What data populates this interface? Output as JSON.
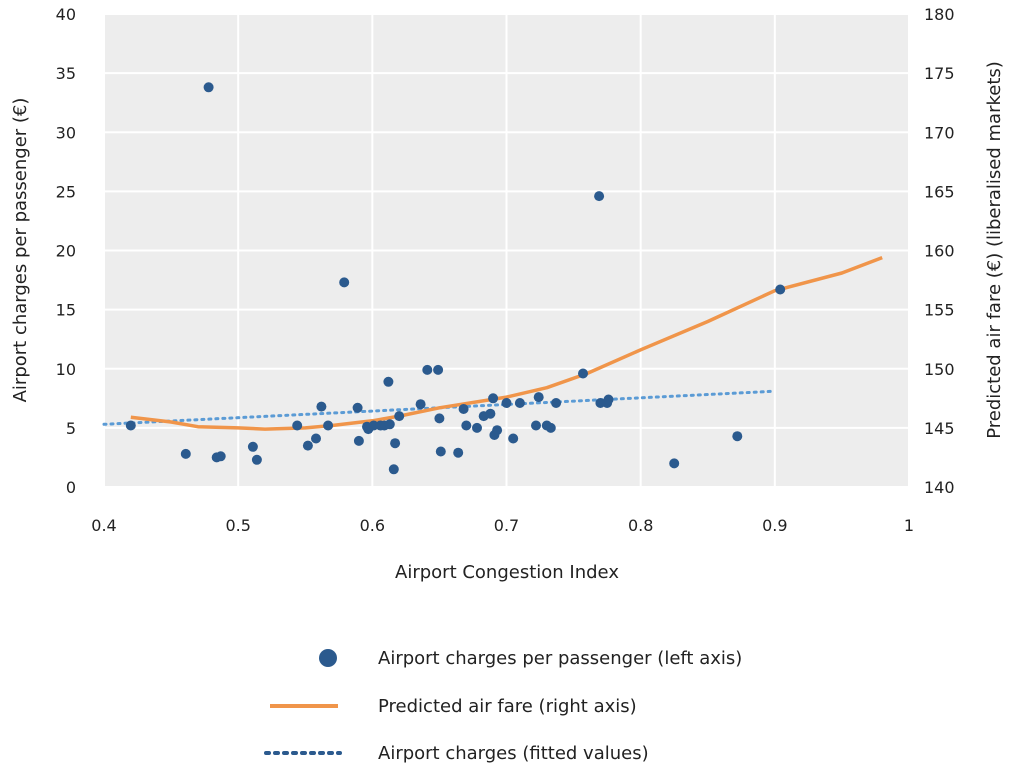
{
  "chart_data": {
    "type": "scatter",
    "x_axis": {
      "label": "Airport Congestion Index",
      "range": [
        0.4,
        1.0
      ],
      "ticks": [
        0.4,
        0.5,
        0.6,
        0.7,
        0.8,
        0.9,
        1.0
      ],
      "tick_labels": [
        "0.4",
        "0.5",
        "0.6",
        "0.7",
        "0.8",
        "0.9",
        "1"
      ]
    },
    "y_axis_left": {
      "label": "Airport charges per passenger (€)",
      "range": [
        0,
        40
      ],
      "ticks": [
        0,
        5,
        10,
        15,
        20,
        25,
        30,
        35,
        40
      ],
      "tick_labels": [
        "0",
        "5",
        "10",
        "15",
        "20",
        "25",
        "30",
        "35",
        "40"
      ]
    },
    "y_axis_right": {
      "label": "Predicted air fare (€) (liberalised markets)",
      "range": [
        140,
        180
      ],
      "ticks": [
        140,
        145,
        150,
        155,
        160,
        165,
        170,
        175,
        180
      ],
      "tick_labels": [
        "140",
        "145",
        "150",
        "155",
        "160",
        "165",
        "170",
        "175",
        "180"
      ]
    },
    "grid": true,
    "legend_position": "bottom",
    "series": [
      {
        "name": "Airport charges per passenger (left axis)",
        "type": "scatter",
        "axis": "left",
        "color": "#2b5a8e",
        "points": [
          [
            0.42,
            5.2
          ],
          [
            0.461,
            2.8
          ],
          [
            0.478,
            33.8
          ],
          [
            0.484,
            2.5
          ],
          [
            0.487,
            2.6
          ],
          [
            0.511,
            3.4
          ],
          [
            0.514,
            2.3
          ],
          [
            0.544,
            5.2
          ],
          [
            0.552,
            3.5
          ],
          [
            0.558,
            4.1
          ],
          [
            0.562,
            6.8
          ],
          [
            0.567,
            5.2
          ],
          [
            0.579,
            17.3
          ],
          [
            0.589,
            6.7
          ],
          [
            0.59,
            3.9
          ],
          [
            0.596,
            5.1
          ],
          [
            0.597,
            4.9
          ],
          [
            0.601,
            5.2
          ],
          [
            0.606,
            5.2
          ],
          [
            0.609,
            5.2
          ],
          [
            0.612,
            8.9
          ],
          [
            0.613,
            5.3
          ],
          [
            0.616,
            1.5
          ],
          [
            0.617,
            3.7
          ],
          [
            0.62,
            6.0
          ],
          [
            0.636,
            7.0
          ],
          [
            0.641,
            9.9
          ],
          [
            0.649,
            9.9
          ],
          [
            0.65,
            5.8
          ],
          [
            0.651,
            3.0
          ],
          [
            0.664,
            2.9
          ],
          [
            0.668,
            6.6
          ],
          [
            0.67,
            5.2
          ],
          [
            0.678,
            5.0
          ],
          [
            0.683,
            6.0
          ],
          [
            0.688,
            6.2
          ],
          [
            0.69,
            7.5
          ],
          [
            0.691,
            4.4
          ],
          [
            0.693,
            4.8
          ],
          [
            0.7,
            7.1
          ],
          [
            0.705,
            4.1
          ],
          [
            0.71,
            7.1
          ],
          [
            0.722,
            5.2
          ],
          [
            0.724,
            7.6
          ],
          [
            0.73,
            5.2
          ],
          [
            0.733,
            5.0
          ],
          [
            0.737,
            7.1
          ],
          [
            0.757,
            9.6
          ],
          [
            0.769,
            24.6
          ],
          [
            0.77,
            7.1
          ],
          [
            0.775,
            7.1
          ],
          [
            0.776,
            7.4
          ],
          [
            0.825,
            2.0
          ],
          [
            0.872,
            4.3
          ],
          [
            0.904,
            16.7
          ]
        ]
      },
      {
        "name": "Predicted air fare (right axis)",
        "type": "line",
        "axis": "right",
        "color": "#f0954a",
        "points": [
          [
            0.42,
            145.9
          ],
          [
            0.45,
            145.5
          ],
          [
            0.47,
            145.1
          ],
          [
            0.5,
            145.0
          ],
          [
            0.52,
            144.9
          ],
          [
            0.55,
            145.0
          ],
          [
            0.57,
            145.2
          ],
          [
            0.6,
            145.6
          ],
          [
            0.62,
            146.0
          ],
          [
            0.65,
            146.7
          ],
          [
            0.7,
            147.6
          ],
          [
            0.73,
            148.4
          ],
          [
            0.76,
            149.6
          ],
          [
            0.8,
            151.6
          ],
          [
            0.85,
            154.0
          ],
          [
            0.9,
            156.6
          ],
          [
            0.95,
            158.1
          ],
          [
            0.98,
            159.4
          ]
        ]
      },
      {
        "name": "Airport charges (fitted values)",
        "type": "line",
        "axis": "left",
        "style": "dotted",
        "color": "#5b9bd5",
        "points": [
          [
            0.4,
            5.3
          ],
          [
            0.9,
            8.1
          ]
        ]
      }
    ]
  }
}
